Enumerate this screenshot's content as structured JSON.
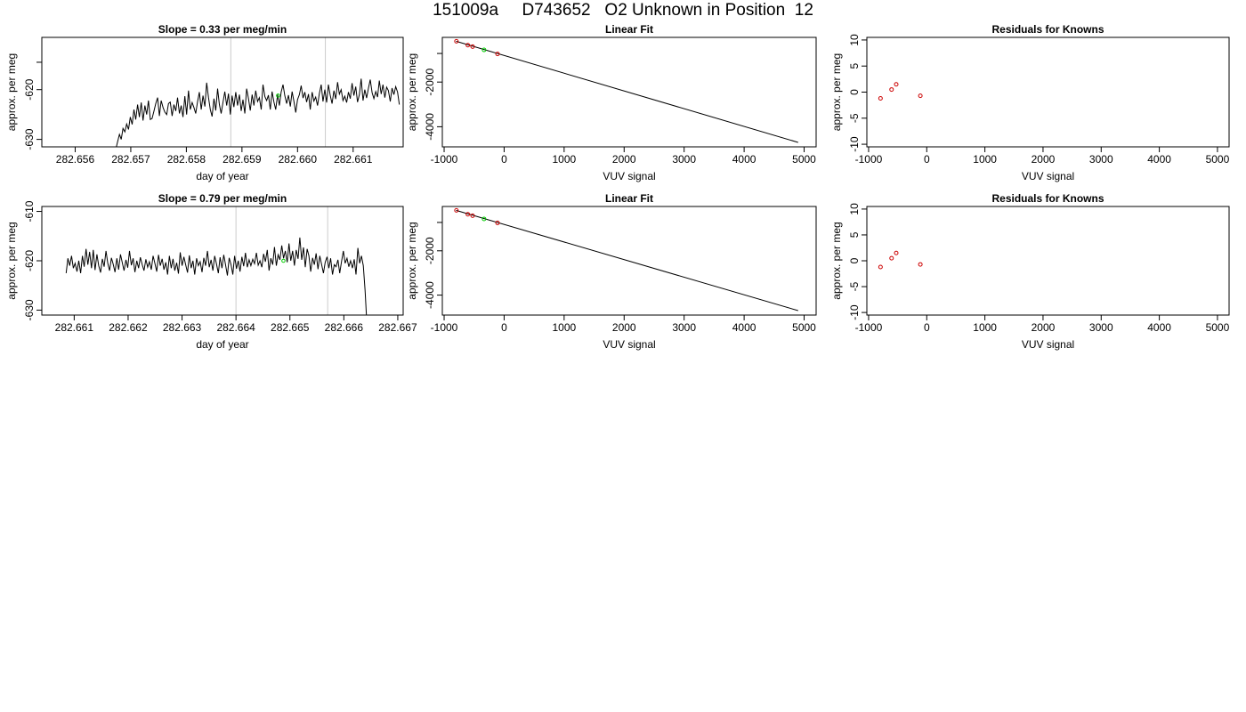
{
  "page_title": "151009a     D743652   O2 Unknown in Position  12",
  "chart_data": [
    {
      "type": "line",
      "title": "Slope =  0.33  per meg/min",
      "xlabel": "day of year",
      "ylabel": "approx. per meg",
      "xlim": [
        282.6554,
        282.6619
      ],
      "ylim": [
        -631.5,
        -609.5
      ],
      "xticks": [
        "282.656",
        "282.657",
        "282.658",
        "282.659",
        "282.660",
        "282.661"
      ],
      "xtick_values": [
        282.656,
        282.657,
        282.658,
        282.659,
        282.66,
        282.661
      ],
      "yticks": [
        "-630",
        "-620",
        ""
      ],
      "ytick_values": [
        -630,
        -620,
        -614.5
      ],
      "vlines": [
        282.6588,
        282.6605
      ],
      "vline_color": "#cccccc",
      "line_color": "#000000",
      "series": [
        {
          "x_start": 282.65673,
          "x_step": 3.27e-05,
          "values": [
            -632.0,
            -630.5,
            -629.0,
            -630.0,
            -627.8,
            -628.5,
            -626.9,
            -628.0,
            -625.5,
            -627.0,
            -624.0,
            -626.0,
            -623.0,
            -625.5,
            -622.6,
            -626.2,
            -623.2,
            -625.0,
            -622.2,
            -626.0,
            -625.8,
            -624.3,
            -622.8,
            -621.6,
            -625.3,
            -622.2,
            -623.6,
            -624.5,
            -625.0,
            -622.8,
            -622.5,
            -625.3,
            -623.0,
            -624.3,
            -621.6,
            -624.8,
            -623.2,
            -625.5,
            -621.3,
            -625.0,
            -620.2,
            -624.0,
            -622.6,
            -623.6,
            -624.8,
            -622.4,
            -620.5,
            -624.0,
            -621.2,
            -623.4,
            -618.6,
            -621.5,
            -624.0,
            -625.4,
            -621.8,
            -624.2,
            -619.8,
            -623.0,
            -624.8,
            -622.5,
            -620.4,
            -623.2,
            -620.8,
            -625.0,
            -621.2,
            -623.5,
            -620.5,
            -623.2,
            -621.0,
            -624.3,
            -622.0,
            -624.8,
            -619.8,
            -621.8,
            -624.2,
            -621.0,
            -623.2,
            -620.2,
            -622.4,
            -621.6,
            -624.0,
            -619.0,
            -621.4,
            -622.2,
            -621.1,
            -624.0,
            -620.4,
            -622.5,
            -624.0,
            -621.0,
            -623.2,
            -620.5,
            -619.0,
            -621.2,
            -622.8,
            -621.1,
            -623.4,
            -620.4,
            -622.3,
            -624.6,
            -622.0,
            -621.0,
            -619.2,
            -621.7,
            -620.5,
            -622.5,
            -620.9,
            -624.0,
            -620.5,
            -622.3,
            -621.5,
            -623.2,
            -620.8,
            -619.0,
            -622.4,
            -620.0,
            -622.6,
            -619.0,
            -621.2,
            -622.8,
            -620.2,
            -621.9,
            -618.5,
            -620.9,
            -620.0,
            -622.2,
            -621.3,
            -622.6,
            -620.5,
            -621.8,
            -618.7,
            -621.2,
            -619.4,
            -622.5,
            -621.0,
            -617.8,
            -622.2,
            -620.0,
            -621.7,
            -619.7,
            -618.0,
            -620.6,
            -621.8,
            -620.4,
            -621.5,
            -618.2,
            -620.9,
            -619.0,
            -621.6,
            -619.5,
            -620.2,
            -622.4,
            -619.7,
            -621.0,
            -619.4,
            -620.5,
            -623.0
          ]
        }
      ],
      "markers": [
        {
          "x": 282.65965,
          "y": -621.2,
          "color": "#00cc00"
        }
      ]
    },
    {
      "type": "scatter",
      "title": "Linear Fit",
      "xlabel": "VUV signal",
      "ylabel": "approx. per meg",
      "xlim": [
        -1030,
        5200
      ],
      "ylim": [
        -4900,
        0
      ],
      "xticks": [
        "-1000",
        "0",
        "1000",
        "2000",
        "3000",
        "4000",
        "5000"
      ],
      "xtick_values": [
        -1000,
        0,
        1000,
        2000,
        3000,
        4000,
        5000
      ],
      "yticks": [
        "-4000",
        "-2000",
        ""
      ],
      "ytick_values": [
        -4000,
        -2000,
        -720
      ],
      "fit_line": {
        "x": [
          -800,
          4900
        ],
        "y": [
          -175,
          -4700
        ],
        "color": "#000000"
      },
      "points": [
        {
          "x": -795,
          "y": -175,
          "color": "#cc0000"
        },
        {
          "x": -605,
          "y": -350,
          "color": "#cc0000"
        },
        {
          "x": -525,
          "y": -415,
          "color": "#cc0000"
        },
        {
          "x": -110,
          "y": -740,
          "color": "#cc0000"
        }
      ],
      "unknowns": [
        {
          "x": -335,
          "y": -560,
          "color": "#00cc00"
        }
      ]
    },
    {
      "type": "scatter",
      "title": "Residuals for Knowns",
      "xlabel": "VUV signal",
      "ylabel": "approx. per meg",
      "xlim": [
        -1030,
        5200
      ],
      "ylim": [
        -10.5,
        10.5
      ],
      "xticks": [
        "-1000",
        "0",
        "1000",
        "2000",
        "3000",
        "4000",
        "5000"
      ],
      "xtick_values": [
        -1000,
        0,
        1000,
        2000,
        3000,
        4000,
        5000
      ],
      "yticks": [
        "-10",
        "-5",
        "0",
        "5",
        "10"
      ],
      "ytick_values": [
        -10,
        -5,
        0,
        5,
        10
      ],
      "points": [
        {
          "x": -795,
          "y": -1.2,
          "color": "#cc0000"
        },
        {
          "x": -605,
          "y": 0.5,
          "color": "#cc0000"
        },
        {
          "x": -525,
          "y": 1.5,
          "color": "#cc0000"
        },
        {
          "x": -110,
          "y": -0.7,
          "color": "#cc0000"
        }
      ]
    },
    {
      "type": "line",
      "title": "Slope =  0.79  per meg/min",
      "xlabel": "day of year",
      "ylabel": "approx. per meg",
      "xlim": [
        282.6604,
        282.6671
      ],
      "ylim": [
        -631,
        -609
      ],
      "xticks": [
        "282.661",
        "282.662",
        "282.663",
        "282.664",
        "282.665",
        "282.666",
        "282.667"
      ],
      "xtick_values": [
        282.661,
        282.662,
        282.663,
        282.664,
        282.665,
        282.666,
        282.667
      ],
      "yticks": [
        "-630",
        "-620",
        "-610"
      ],
      "ytick_values": [
        -630,
        -620,
        -610
      ],
      "vlines": [
        282.664,
        282.6657
      ],
      "vline_color": "#cccccc",
      "line_color": "#000000",
      "series": [
        {
          "x_start": 282.66085,
          "x_step": 3.36e-05,
          "values": [
            -622.5,
            -619.5,
            -621.0,
            -619.0,
            -621.5,
            -620.5,
            -622.2,
            -620.0,
            -622.5,
            -619.0,
            -621.2,
            -617.6,
            -620.8,
            -618.2,
            -621.5,
            -617.8,
            -621.9,
            -618.7,
            -621.0,
            -622.4,
            -619.6,
            -621.2,
            -618.0,
            -620.5,
            -622.0,
            -619.4,
            -620.7,
            -622.3,
            -619.5,
            -621.8,
            -618.7,
            -620.4,
            -622.0,
            -619.8,
            -621.4,
            -618.0,
            -620.9,
            -619.5,
            -622.3,
            -620.0,
            -621.5,
            -619.3,
            -620.8,
            -622.0,
            -619.7,
            -621.3,
            -620.2,
            -621.8,
            -619.0,
            -620.5,
            -622.2,
            -618.8,
            -621.0,
            -619.6,
            -621.8,
            -620.3,
            -622.8,
            -619.0,
            -621.5,
            -619.6,
            -622.0,
            -620.4,
            -622.6,
            -618.3,
            -621.0,
            -619.2,
            -620.8,
            -622.4,
            -618.9,
            -621.5,
            -620.0,
            -622.8,
            -619.5,
            -621.0,
            -620.2,
            -622.3,
            -619.4,
            -621.0,
            -618.0,
            -621.3,
            -619.8,
            -622.0,
            -619.0,
            -620.7,
            -622.5,
            -619.3,
            -621.5,
            -618.8,
            -620.8,
            -623.0,
            -619.4,
            -620.8,
            -622.8,
            -619.0,
            -621.6,
            -620.0,
            -622.2,
            -619.2,
            -621.1,
            -618.4,
            -621.3,
            -619.8,
            -621.0,
            -619.7,
            -620.6,
            -618.4,
            -620.9,
            -620.0,
            -621.3,
            -618.6,
            -620.2,
            -617.8,
            -622.0,
            -619.5,
            -620.8,
            -617.2,
            -621.0,
            -618.8,
            -619.8,
            -616.9,
            -619.5,
            -618.0,
            -620.3,
            -616.5,
            -620.0,
            -618.0,
            -621.0,
            -617.8,
            -619.6,
            -615.3,
            -619.8,
            -617.3,
            -621.3,
            -617.6,
            -619.0,
            -622.2,
            -619.4,
            -620.8,
            -618.5,
            -621.7,
            -619.0,
            -620.8,
            -622.5,
            -620.3,
            -619.2,
            -621.5,
            -619.5,
            -622.8,
            -620.8,
            -621.2,
            -619.8,
            -622.5,
            -620.2,
            -618.0,
            -620.5,
            -619.5,
            -621.2,
            -620.0,
            -621.5,
            -619.7,
            -622.8,
            -617.4,
            -620.5,
            -619.0,
            -621.0,
            -626.0,
            -633.0
          ]
        }
      ],
      "markers": [
        {
          "x": 282.66488,
          "y": -620.0,
          "color": "#00cc00"
        }
      ]
    },
    {
      "type": "scatter",
      "title": "Linear Fit",
      "xlabel": "VUV signal",
      "ylabel": "approx. per meg",
      "xlim": [
        -1030,
        5200
      ],
      "ylim": [
        -4900,
        0
      ],
      "xticks": [
        "-1000",
        "0",
        "1000",
        "2000",
        "3000",
        "4000",
        "5000"
      ],
      "xtick_values": [
        -1000,
        0,
        1000,
        2000,
        3000,
        4000,
        5000
      ],
      "yticks": [
        "-4000",
        "-2000",
        ""
      ],
      "ytick_values": [
        -4000,
        -2000,
        -720
      ],
      "fit_line": {
        "x": [
          -800,
          4900
        ],
        "y": [
          -175,
          -4700
        ],
        "color": "#000000"
      },
      "points": [
        {
          "x": -795,
          "y": -175,
          "color": "#cc0000"
        },
        {
          "x": -605,
          "y": -350,
          "color": "#cc0000"
        },
        {
          "x": -525,
          "y": -415,
          "color": "#cc0000"
        },
        {
          "x": -110,
          "y": -740,
          "color": "#cc0000"
        }
      ],
      "unknowns": [
        {
          "x": -335,
          "y": -560,
          "color": "#00cc00"
        }
      ]
    },
    {
      "type": "scatter",
      "title": "Residuals for Knowns",
      "xlabel": "VUV signal",
      "ylabel": "approx. per meg",
      "xlim": [
        -1030,
        5200
      ],
      "ylim": [
        -10.5,
        10.5
      ],
      "xticks": [
        "-1000",
        "0",
        "1000",
        "2000",
        "3000",
        "4000",
        "5000"
      ],
      "xtick_values": [
        -1000,
        0,
        1000,
        2000,
        3000,
        4000,
        5000
      ],
      "yticks": [
        "-10",
        "-5",
        "0",
        "5",
        "10"
      ],
      "ytick_values": [
        -10,
        -5,
        0,
        5,
        10
      ],
      "points": [
        {
          "x": -795,
          "y": -1.2,
          "color": "#cc0000"
        },
        {
          "x": -605,
          "y": 0.5,
          "color": "#cc0000"
        },
        {
          "x": -525,
          "y": 1.5,
          "color": "#cc0000"
        },
        {
          "x": -110,
          "y": -0.7,
          "color": "#cc0000"
        }
      ]
    }
  ]
}
